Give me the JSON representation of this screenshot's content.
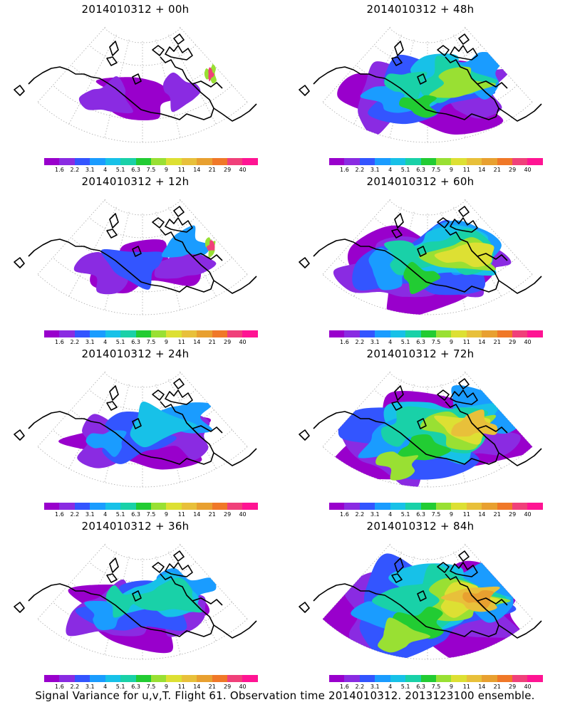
{
  "panels": [
    {
      "title": "2014010312 + 00h",
      "stage": 0
    },
    {
      "title": "2014010312 + 48h",
      "stage": 4
    },
    {
      "title": "2014010312 + 12h",
      "stage": 1
    },
    {
      "title": "2014010312 + 60h",
      "stage": 5
    },
    {
      "title": "2014010312 + 24h",
      "stage": 2
    },
    {
      "title": "2014010312 + 72h",
      "stage": 6
    },
    {
      "title": "2014010312 + 36h",
      "stage": 3
    },
    {
      "title": "2014010312 + 84h",
      "stage": 7
    }
  ],
  "colorbar": {
    "colors": [
      "#9900cc",
      "#8a2be2",
      "#3355ff",
      "#1a9cff",
      "#17c1e8",
      "#19d1a8",
      "#22cc33",
      "#99e033",
      "#dde033",
      "#e8c03a",
      "#e8a030",
      "#f07828",
      "#f0407a",
      "#ff1493"
    ],
    "labels": [
      "1.6",
      "2.2",
      "3.1",
      "4",
      "5.1",
      "6.3",
      "7.5",
      "9",
      "11",
      "14",
      "21",
      "29",
      "40"
    ]
  },
  "caption": "Signal Variance for u,v,T. Flight 61. Observation time 2014010312. 2013123100 ensemble."
}
